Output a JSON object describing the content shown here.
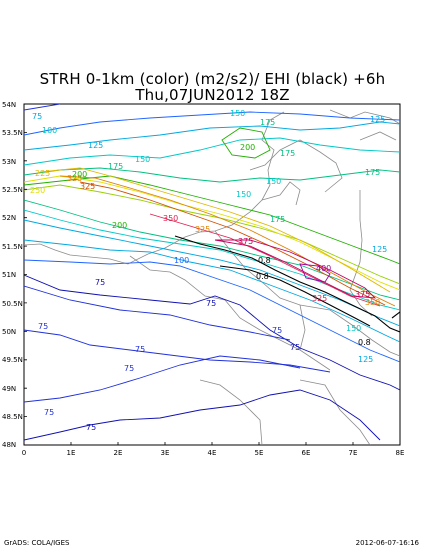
{
  "title": {
    "line1": "STRH 0-1km (color) (m2/s2)/ EHI (black) +6h",
    "line2": "Thu,07JUN2012 18Z"
  },
  "axes": {
    "lat_labels": [
      "54N",
      "53.5N",
      "53N",
      "52.5N",
      "52N",
      "51.5N",
      "51N",
      "50.5N",
      "50N",
      "49.5N",
      "49N",
      "48.5N",
      "48N"
    ],
    "lon_labels": [
      "0",
      "1E",
      "2E",
      "3E",
      "4E",
      "5E",
      "6E",
      "7E",
      "8E"
    ],
    "lat_range": [
      48,
      54
    ],
    "lon_range": [
      0,
      8
    ]
  },
  "contour_labels": {
    "colored": [
      "75",
      "100",
      "125",
      "150",
      "175",
      "200",
      "225",
      "250",
      "275",
      "300",
      "325",
      "350",
      "375",
      "400"
    ],
    "ehi": [
      "0.8"
    ]
  },
  "colors": {
    "c50": "#1010b0",
    "c75": "#2030d8",
    "c100": "#1e64ff",
    "c125": "#00a8e0",
    "c150": "#00c8c8",
    "c175": "#00c080",
    "c200": "#20b000",
    "c225": "#98d000",
    "c250": "#e0e000",
    "c275": "#e0b800",
    "c300": "#e08000",
    "c325": "#d05000",
    "c350": "#e02050",
    "c375": "#c00060",
    "c400": "#a000a0",
    "border": "#8c8c8c",
    "ehi": "#000000"
  },
  "footer": {
    "left": "GrADS: COLA/IGES",
    "right": "2012-06-07-16:16"
  }
}
